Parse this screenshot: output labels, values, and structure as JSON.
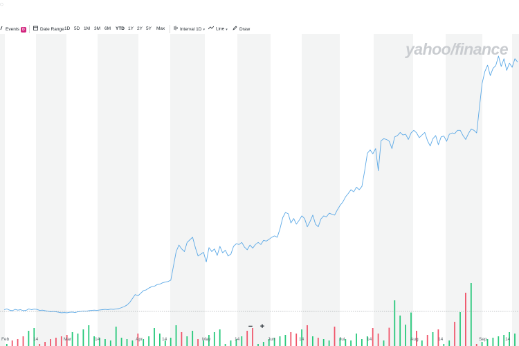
{
  "toolbar": {
    "events_label": "Events",
    "events_badge": "D",
    "date_range_label": "Date Range",
    "ranges": [
      "1D",
      "5D",
      "1M",
      "3M",
      "6M",
      "YTD",
      "1Y",
      "2Y",
      "5Y",
      "Max"
    ],
    "active_range": "YTD",
    "interval_label": "Interval",
    "interval_value": "1D",
    "chart_type_label": "Line",
    "draw_label": "Draw"
  },
  "watermark": "yahoo/finance",
  "zoom": {
    "minus": "−",
    "plus": "+"
  },
  "colors": {
    "line": "#5aa8e6",
    "up": "#26c87a",
    "down": "#f0556a",
    "band": "#f3f4f4",
    "accent": "#6001d2"
  },
  "chart_data": {
    "type": "line",
    "x_tick_labels": [
      "Feb",
      "14",
      "Mar",
      "14",
      "Apr",
      "14",
      "May",
      "14",
      "Jun",
      "14",
      "Jul",
      "14",
      "Aug",
      "14",
      "Sep",
      "14"
    ],
    "series": [
      {
        "values": [
          12,
          15,
          10,
          8,
          13,
          10,
          12,
          8,
          9,
          15,
          12,
          14,
          13,
          9,
          10,
          8,
          6,
          4,
          5,
          4,
          2,
          0,
          1,
          0,
          2,
          3,
          1,
          4,
          5,
          7,
          6,
          8,
          9,
          10,
          9,
          11,
          12,
          13,
          12,
          14,
          13,
          15,
          16,
          20,
          24,
          30,
          40,
          55,
          70,
          65,
          75,
          85,
          88,
          95,
          100,
          102,
          108,
          110,
          115,
          118,
          120,
          125,
          180,
          235,
          260,
          245,
          235,
          270,
          280,
          290,
          250,
          218,
          225,
          232,
          195,
          250,
          235,
          245,
          220,
          255,
          230,
          240,
          218,
          225,
          255,
          265,
          262,
          270,
          252,
          242,
          260,
          248,
          262,
          270,
          262,
          278,
          275,
          282,
          290,
          295,
          290,
          322,
          365,
          385,
          380,
          345,
          362,
          340,
          355,
          372,
          362,
          330,
          350,
          375,
          340,
          330,
          360,
          372,
          368,
          382,
          378,
          375,
          395,
          412,
          425,
          445,
          458,
          472,
          464,
          482,
          472,
          485,
          545,
          612,
          625,
          610,
          630,
          545,
          660,
          668,
          665,
          658,
          630,
          675,
          680,
          692,
          682,
          685,
          665,
          690,
          700,
          690,
          672,
          682,
          692,
          660,
          640,
          668,
          680,
          645,
          675,
          678,
          658,
          685,
          690,
          688,
          700,
          700,
          680,
          665,
          688,
          705,
          700,
          690,
          785,
          880,
          925,
          950,
          910,
          938,
          948,
          985,
          945,
          975,
          930,
          958,
          942,
          975,
          962
        ]
      }
    ]
  }
}
